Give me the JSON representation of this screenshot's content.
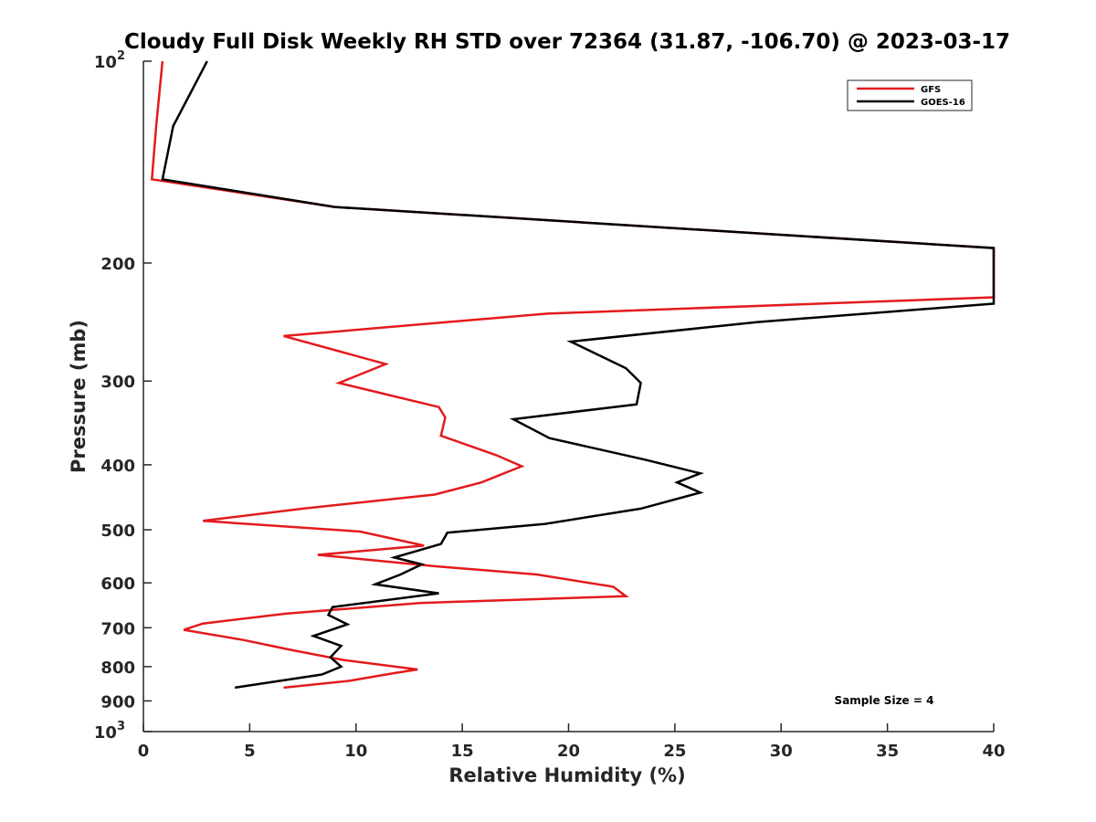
{
  "chart_data": {
    "type": "line",
    "title": "Cloudy Full Disk Weekly RH STD over 72364 (31.87, -106.70) @ 2023-03-17",
    "xlabel": "Relative Humidity (%)",
    "ylabel": "Pressure (mb)",
    "xlim": [
      0,
      40
    ],
    "ylim": [
      1000,
      100
    ],
    "y_scale": "log",
    "y_reversed": true,
    "grid": false,
    "legend_position": "top-right",
    "x_ticks": [
      0,
      5,
      10,
      15,
      20,
      25,
      30,
      35,
      40
    ],
    "y_ticks": [
      {
        "value": 100,
        "base": "10",
        "exp": "2"
      },
      {
        "value": 200,
        "label": "200"
      },
      {
        "value": 300,
        "label": "300"
      },
      {
        "value": 400,
        "label": "400"
      },
      {
        "value": 500,
        "label": "500"
      },
      {
        "value": 600,
        "label": "600"
      },
      {
        "value": 700,
        "label": "700"
      },
      {
        "value": 800,
        "label": "800"
      },
      {
        "value": 900,
        "label": "900"
      },
      {
        "value": 1000,
        "base": "10",
        "exp": "3"
      }
    ],
    "annotation": "Sample Size = 4",
    "series": [
      {
        "name": "GFS",
        "color": "#e41a1c",
        "points": [
          [
            0.9,
            100
          ],
          [
            0.6,
            125
          ],
          [
            0.4,
            150
          ],
          [
            9.0,
            165
          ],
          [
            40,
            190
          ],
          [
            40,
            225
          ],
          [
            19.0,
            238
          ],
          [
            6.6,
            257
          ],
          [
            11.4,
            283
          ],
          [
            9.2,
            302
          ],
          [
            13.9,
            328
          ],
          [
            14.2,
            340
          ],
          [
            14.0,
            362
          ],
          [
            16.6,
            387
          ],
          [
            17.8,
            402
          ],
          [
            15.9,
            425
          ],
          [
            13.7,
            443
          ],
          [
            7.5,
            465
          ],
          [
            2.8,
            485
          ],
          [
            10.2,
            503
          ],
          [
            13.2,
            528
          ],
          [
            8.2,
            545
          ],
          [
            13.8,
            567
          ],
          [
            18.5,
            583
          ],
          [
            22.1,
            608
          ],
          [
            22.7,
            628
          ],
          [
            13.0,
            643
          ],
          [
            6.7,
            667
          ],
          [
            2.8,
            690
          ],
          [
            1.9,
            705
          ],
          [
            4.7,
            730
          ],
          [
            6.9,
            755
          ],
          [
            9.4,
            782
          ],
          [
            12.9,
            808
          ],
          [
            11.8,
            818
          ],
          [
            9.7,
            840
          ],
          [
            6.6,
            860
          ]
        ]
      },
      {
        "name": "GOES-16",
        "color": "#000000",
        "points": [
          [
            3.0,
            100
          ],
          [
            1.4,
            125
          ],
          [
            0.9,
            150
          ],
          [
            9.0,
            165
          ],
          [
            40,
            190
          ],
          [
            40,
            230
          ],
          [
            28.9,
            245
          ],
          [
            20.1,
            262
          ],
          [
            22.7,
            287
          ],
          [
            23.4,
            302
          ],
          [
            23.2,
            325
          ],
          [
            17.4,
            342
          ],
          [
            19.1,
            365
          ],
          [
            23.6,
            393
          ],
          [
            26.2,
            412
          ],
          [
            25.1,
            425
          ],
          [
            26.2,
            440
          ],
          [
            23.4,
            465
          ],
          [
            18.9,
            490
          ],
          [
            14.3,
            505
          ],
          [
            14.0,
            525
          ],
          [
            11.8,
            550
          ],
          [
            13.1,
            563
          ],
          [
            12.1,
            583
          ],
          [
            10.9,
            603
          ],
          [
            13.9,
            622
          ],
          [
            8.9,
            652
          ],
          [
            8.7,
            670
          ],
          [
            9.6,
            692
          ],
          [
            8.0,
            720
          ],
          [
            9.3,
            745
          ],
          [
            8.8,
            775
          ],
          [
            9.3,
            800
          ],
          [
            8.4,
            822
          ],
          [
            4.3,
            860
          ]
        ]
      }
    ]
  }
}
